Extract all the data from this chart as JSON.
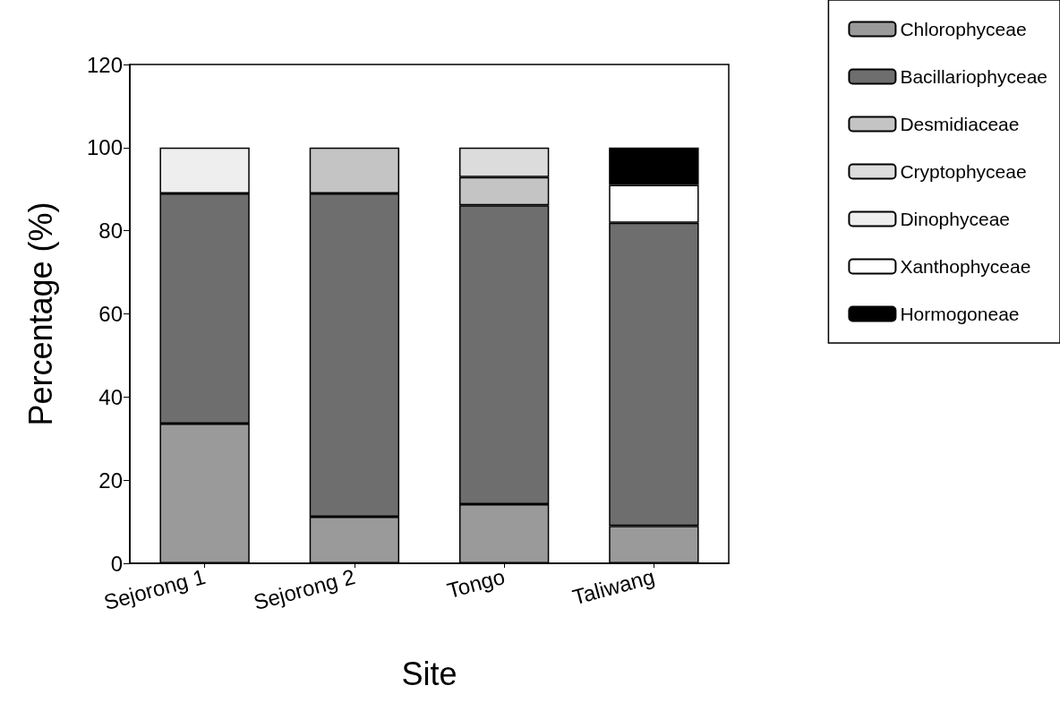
{
  "chart_data": {
    "type": "bar",
    "stacked": true,
    "xlabel": "Site",
    "ylabel": "Percentage (%)",
    "categories": [
      "Sejorong 1",
      "Sejorong 2",
      "Tongo",
      "Taliwang"
    ],
    "series": [
      {
        "name": "Chlorophyceae",
        "color": "#9a9a9a",
        "values": [
          33.6,
          11.2,
          14.2,
          9.0
        ]
      },
      {
        "name": "Bacillariophyceae",
        "color": "#6e6e6e",
        "values": [
          55.4,
          77.8,
          71.9,
          72.9
        ]
      },
      {
        "name": "Desmidiaceae",
        "color": "#c4c4c4",
        "values": [
          null,
          11.0,
          6.8,
          null
        ]
      },
      {
        "name": "Cryptophyceae",
        "color": "#dcdcdc",
        "values": [
          null,
          null,
          7.1,
          null
        ]
      },
      {
        "name": "Dinophyceae",
        "color": "#eeeeee",
        "values": [
          11.0,
          null,
          null,
          null
        ]
      },
      {
        "name": "Xanthophyceae",
        "color": "#ffffff",
        "values": [
          null,
          null,
          null,
          9.1
        ]
      },
      {
        "name": "Hormogoneae",
        "color": "#000000",
        "values": [
          null,
          null,
          null,
          9.0
        ]
      }
    ],
    "ylim": [
      0,
      120
    ],
    "yticks": [
      0,
      20,
      40,
      60,
      80,
      100,
      120
    ],
    "grid": false,
    "legend": "right"
  }
}
